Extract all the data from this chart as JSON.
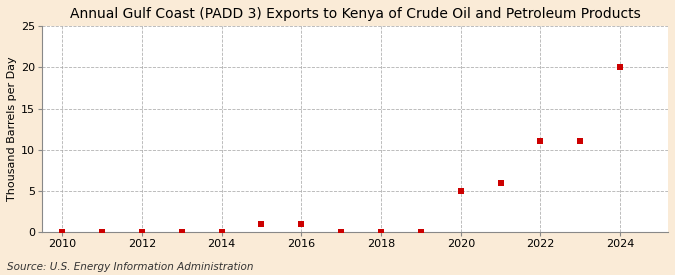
{
  "title": "Annual Gulf Coast (PADD 3) Exports to Kenya of Crude Oil and Petroleum Products",
  "ylabel": "Thousand Barrels per Day",
  "source": "Source: U.S. Energy Information Administration",
  "figure_bg": "#faebd7",
  "plot_bg": "#ffffff",
  "marker_color": "#cc0000",
  "grid_color": "#aaaaaa",
  "spine_color": "#888888",
  "years": [
    2010,
    2011,
    2012,
    2013,
    2014,
    2015,
    2016,
    2017,
    2018,
    2019,
    2020,
    2021,
    2022,
    2023,
    2024
  ],
  "values": [
    0,
    0,
    0,
    0,
    0,
    1,
    1,
    0,
    0,
    0,
    5,
    6,
    11,
    11,
    20
  ],
  "xlim": [
    2009.5,
    2025.2
  ],
  "ylim": [
    0,
    25
  ],
  "yticks": [
    0,
    5,
    10,
    15,
    20,
    25
  ],
  "xticks": [
    2010,
    2012,
    2014,
    2016,
    2018,
    2020,
    2022,
    2024
  ],
  "title_fontsize": 10,
  "ylabel_fontsize": 8,
  "tick_fontsize": 8,
  "source_fontsize": 7.5,
  "marker_size": 22
}
